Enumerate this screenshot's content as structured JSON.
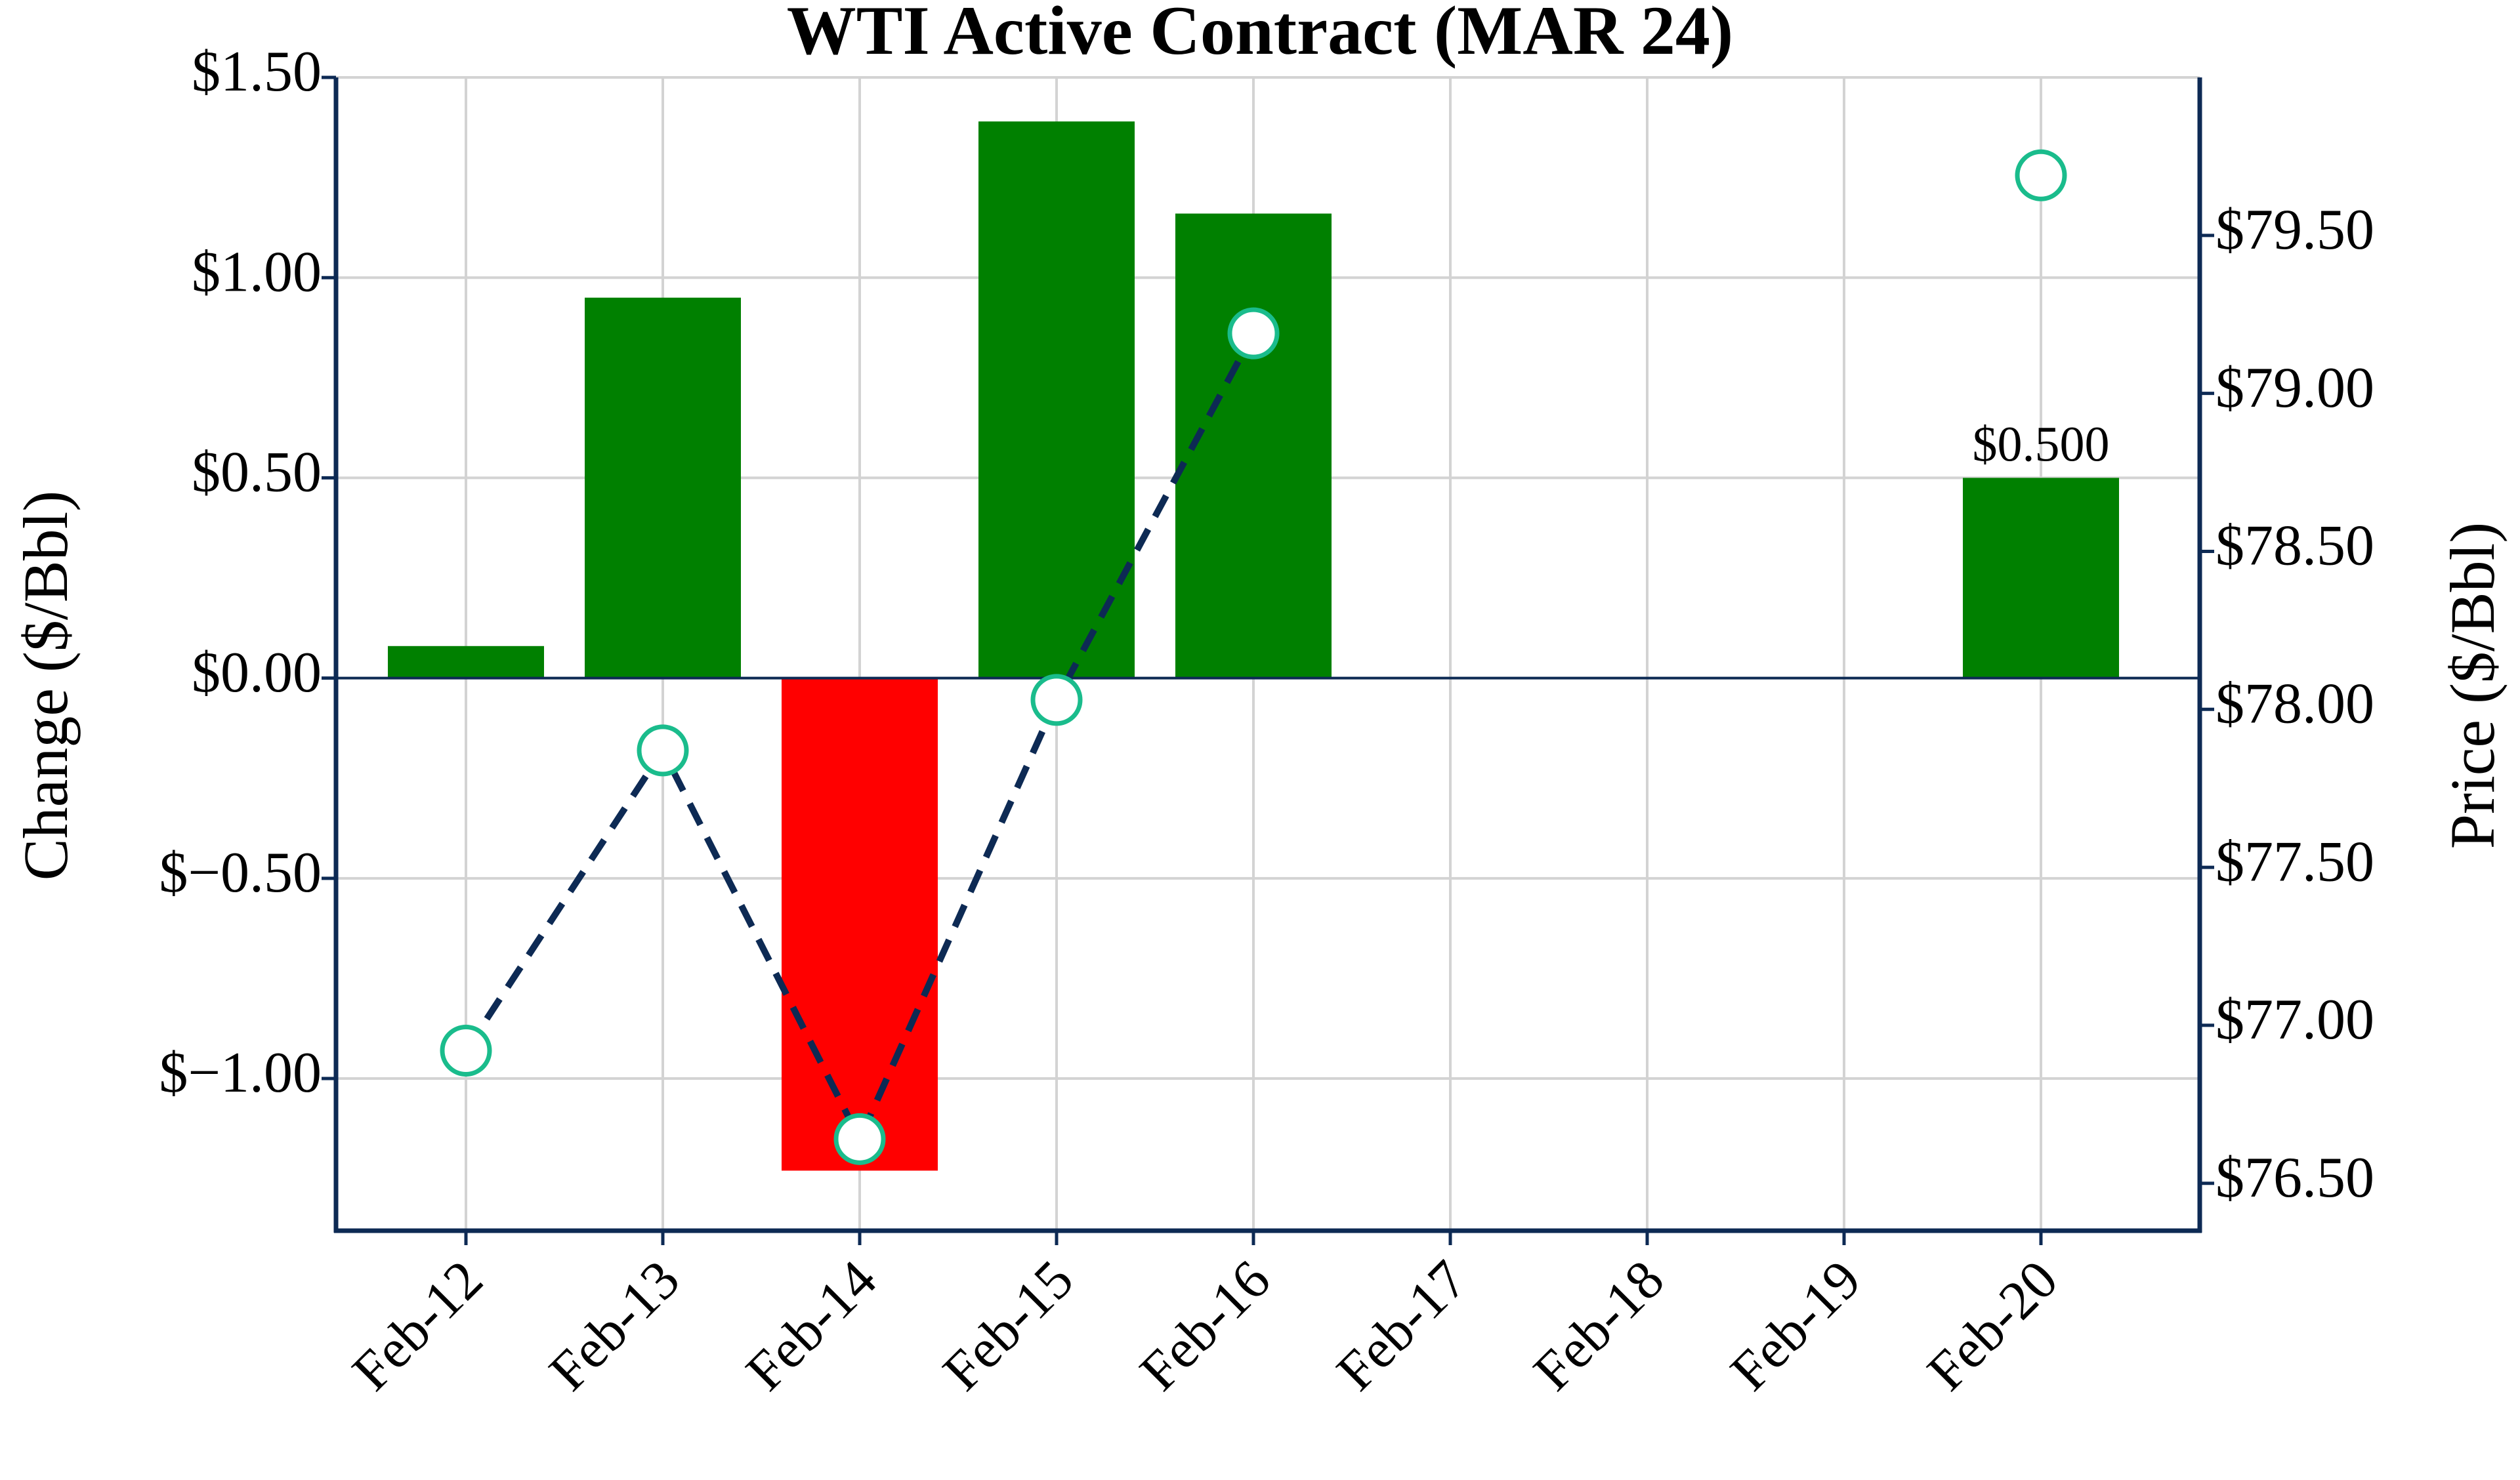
{
  "chart_data": {
    "type": "bar",
    "title": "WTI Active Contract (MAR 24)",
    "categories": [
      "Feb-12",
      "Feb-13",
      "Feb-14",
      "Feb-15",
      "Feb-16",
      "Feb-17",
      "Feb-18",
      "Feb-19",
      "Feb-20"
    ],
    "series": [
      {
        "type": "bar",
        "axis": "left",
        "values": [
          0.08,
          0.95,
          -1.23,
          1.39,
          1.16,
          null,
          null,
          null,
          0.5
        ]
      },
      {
        "type": "line",
        "axis": "right",
        "line_style": "dashed",
        "marker": "open-circle",
        "values": [
          76.92,
          77.87,
          76.64,
          78.03,
          79.19,
          null,
          null,
          null,
          79.69
        ]
      }
    ],
    "ylabel": "Change ($/Bbl)",
    "ylabel_right": "Price ($/Bbl)",
    "ylim": [
      -1.38,
      1.5
    ],
    "ylim_right": [
      76.35,
      80.0
    ],
    "yticks": [
      {
        "value": 1.5,
        "label": "$1.50"
      },
      {
        "value": 1.0,
        "label": "$1.00"
      },
      {
        "value": 0.5,
        "label": "$0.50"
      },
      {
        "value": 0.0,
        "label": "$0.00"
      },
      {
        "value": -0.5,
        "label": "$−0.50"
      },
      {
        "value": -1.0,
        "label": "$−1.00"
      }
    ],
    "yticks_right": [
      {
        "value": 79.5,
        "label": "$79.50"
      },
      {
        "value": 79.0,
        "label": "$79.00"
      },
      {
        "value": 78.5,
        "label": "$78.50"
      },
      {
        "value": 78.0,
        "label": "$78.00"
      },
      {
        "value": 77.5,
        "label": "$77.50"
      },
      {
        "value": 77.0,
        "label": "$77.00"
      },
      {
        "value": 76.5,
        "label": "$76.50"
      }
    ],
    "annotations": [
      {
        "category": "Feb-20",
        "value": 0.5,
        "text": "$0.500"
      }
    ],
    "grid": true,
    "colors": {
      "positive_bar": "#008000",
      "negative_bar": "#ff0000",
      "line": "#0d2a54",
      "marker_edge": "#1abc8c",
      "axis": "#0d2a54",
      "grid": "#d3d3d3"
    }
  }
}
